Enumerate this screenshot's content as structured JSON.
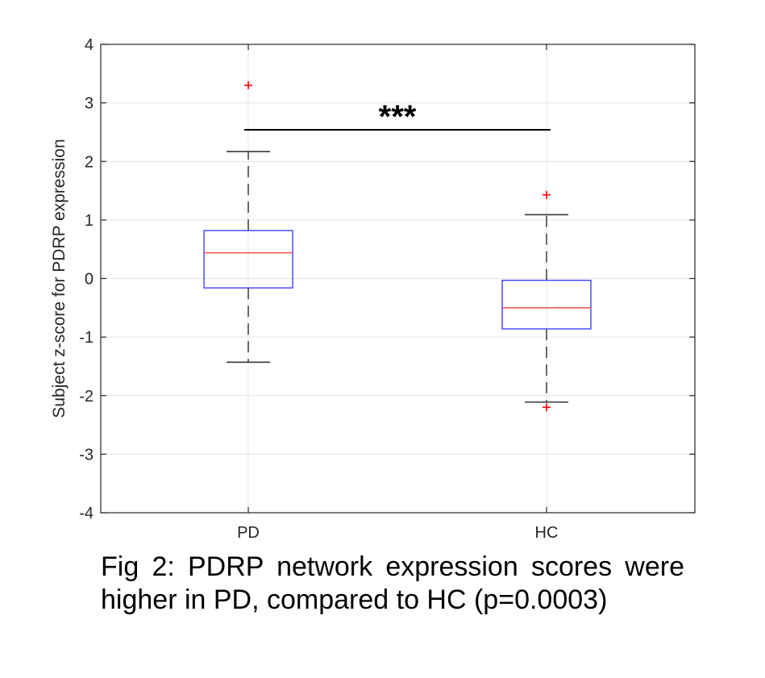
{
  "chart_data": {
    "type": "boxplot",
    "ylabel": "Subject z-score for PDRP expression",
    "ylim": [
      -4,
      4
    ],
    "yticks": [
      "-4",
      "-3",
      "-2",
      "-1",
      "0",
      "1",
      "2",
      "3",
      "4"
    ],
    "categories": [
      "PD",
      "HC"
    ],
    "grid": true,
    "boxes": [
      {
        "label": "PD",
        "whisker_low": -1.43,
        "q1": -0.16,
        "median": 0.44,
        "q3": 0.82,
        "whisker_high": 2.17,
        "outliers": [
          3.3
        ]
      },
      {
        "label": "HC",
        "whisker_low": -2.11,
        "q1": -0.86,
        "median": -0.5,
        "q3": -0.03,
        "whisker_high": 1.09,
        "outliers": [
          1.43,
          -2.2
        ]
      }
    ],
    "significance": {
      "y": 2.54,
      "label": "***"
    },
    "colors": {
      "box": "#3333ff",
      "median": "#ff3b3b",
      "whisker": "#3a3a3a",
      "outlier": "#ff0000",
      "grid": "#e5e5e5",
      "axis": "#262626"
    }
  },
  "caption": "Fig 2: PDRP network expression scores were higher in PD, compared to HC (p=0.0003)"
}
